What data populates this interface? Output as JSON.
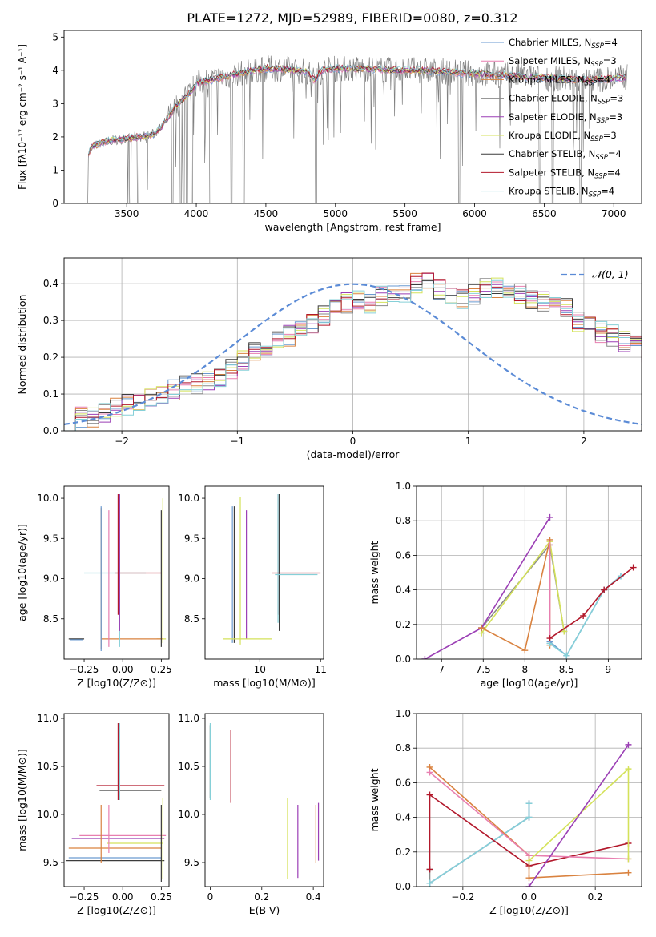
{
  "figure_title": "PLATE=1272, MJD=52989, FIBERID=0080, z=0.312",
  "colors": {
    "chabrier_miles": "#6a9ad0",
    "salpeter_miles": "#e87fb0",
    "kroupa_miles": "#d9823f",
    "chabrier_elodie": "#8a8a8a",
    "salpeter_elodie": "#9b3fb5",
    "kroupa_elodie": "#d4e25a",
    "chabrier_stelib": "#3c3c3c",
    "salpeter_stelib": "#b2182b",
    "kroupa_stelib": "#86d0d8",
    "normal_curve": "#5b8bd6"
  },
  "chart_data": [
    {
      "id": "spectrum",
      "type": "line",
      "xlabel": "wavelength [Angstrom, rest frame]",
      "ylabel": "Flux [fλ10⁻¹⁷ erg cm⁻² s⁻¹ A⁻¹]",
      "xlim": [
        3050,
        7200
      ],
      "ylim": [
        0,
        5.2
      ],
      "xticks": [
        3500,
        4000,
        4500,
        5000,
        5500,
        6000,
        6500,
        7000
      ],
      "yticks": [
        0,
        1,
        2,
        3,
        4,
        5
      ],
      "grid": false,
      "legend_position": "top-right",
      "legend": [
        {
          "label": "Chabrier MILES, N",
          "sub": "SSP",
          "suffix": "=4",
          "color": "#6a9ad0"
        },
        {
          "label": "Salpeter MILES, N",
          "sub": "SSP",
          "suffix": "=3",
          "color": "#e87fb0"
        },
        {
          "label": "Kroupa MILES, N",
          "sub": "SSP",
          "suffix": "=4",
          "color": "#d9823f"
        },
        {
          "label": "Chabrier ELODIE, N",
          "sub": "SSP",
          "suffix": "=3",
          "color": "#8a8a8a"
        },
        {
          "label": "Salpeter ELODIE, N",
          "sub": "SSP",
          "suffix": "=3",
          "color": "#9b3fb5"
        },
        {
          "label": "Kroupa ELODIE, N",
          "sub": "SSP",
          "suffix": "=3",
          "color": "#d4e25a"
        },
        {
          "label": "Chabrier STELIB, N",
          "sub": "SSP",
          "suffix": "=4",
          "color": "#3c3c3c"
        },
        {
          "label": "Salpeter STELIB, N",
          "sub": "SSP",
          "suffix": "=4",
          "color": "#b2182b"
        },
        {
          "label": "Kroupa STELIB, N",
          "sub": "SSP",
          "suffix": "=4",
          "color": "#86d0d8"
        }
      ],
      "model_envelope": {
        "x": [
          3220,
          3250,
          3300,
          3400,
          3500,
          3600,
          3700,
          3750,
          3800,
          3850,
          3900,
          3950,
          4000,
          4100,
          4200,
          4300,
          4400,
          4500,
          4600,
          4700,
          4800,
          4850,
          4900,
          5000,
          5200,
          5400,
          5600,
          5800,
          6000,
          6200,
          6400,
          6600,
          6800,
          7000,
          7100
        ],
        "y": [
          1.5,
          1.7,
          1.8,
          1.9,
          1.95,
          2.0,
          2.1,
          2.3,
          2.6,
          2.9,
          3.1,
          3.3,
          3.6,
          3.7,
          3.8,
          3.9,
          4.0,
          4.05,
          4.05,
          4.0,
          3.95,
          3.7,
          4.0,
          4.05,
          4.05,
          4.0,
          4.0,
          3.95,
          3.9,
          3.85,
          3.8,
          3.75,
          3.7,
          3.75,
          3.8
        ]
      },
      "observed_absorption_dips": [
        3525,
        3580,
        3830,
        3889,
        3910,
        3934,
        3968,
        4101,
        4254,
        4340,
        4861,
        5890,
        6470,
        6560,
        6760
      ]
    },
    {
      "id": "residual_histogram",
      "type": "bar",
      "xlabel": "(data-model)/error",
      "ylabel": "Normed distribution",
      "xlim": [
        -2.5,
        2.5
      ],
      "ylim": [
        0,
        0.47
      ],
      "xticks": [
        -2,
        -1,
        0,
        1,
        2
      ],
      "yticks": [
        0.0,
        0.1,
        0.2,
        0.3,
        0.4
      ],
      "grid": true,
      "legend_position": "top-right",
      "legend": [
        {
          "label": "𝒩(0, 1)",
          "color": "#5b8bd6"
        }
      ],
      "bin_width": 0.1,
      "bins_start": -2.5,
      "series_base": [
        0.03,
        0.035,
        0.04,
        0.05,
        0.06,
        0.07,
        0.08,
        0.095,
        0.1,
        0.11,
        0.12,
        0.13,
        0.14,
        0.15,
        0.17,
        0.19,
        0.21,
        0.22,
        0.24,
        0.26,
        0.27,
        0.29,
        0.31,
        0.33,
        0.35,
        0.36,
        0.35,
        0.37,
        0.37,
        0.38,
        0.4,
        0.4,
        0.38,
        0.37,
        0.36,
        0.37,
        0.39,
        0.39,
        0.38,
        0.37,
        0.36,
        0.35,
        0.34,
        0.33,
        0.3,
        0.29,
        0.27,
        0.26,
        0.24,
        0.23,
        0.21,
        0.2,
        0.18,
        0.17,
        0.15,
        0.14,
        0.12,
        0.11,
        0.1,
        0.09,
        0.08,
        0.07,
        0.06,
        0.05,
        0.045,
        0.04,
        0.035,
        0.03,
        0.03,
        0.03
      ]
    },
    {
      "id": "age_vs_Z",
      "type": "scatter",
      "xlabel": "Z [log10(Z/Z⊙)]",
      "ylabel": "age  [log10(age/yr)]",
      "xlim": [
        -0.38,
        0.3
      ],
      "ylim": [
        8.0,
        10.15
      ],
      "xticks": [
        -0.25,
        0.0,
        0.25
      ],
      "xticklabels": [
        "−0.25",
        "0.00",
        "0.25"
      ],
      "yticks": [
        8.5,
        9.0,
        9.5,
        10.0
      ],
      "grid": false,
      "points": [
        {
          "x": -0.3,
          "y": 8.25,
          "xerr": 0.05,
          "yerr": 0.0,
          "color": "#3c3c3c"
        },
        {
          "x": -0.3,
          "y": 8.24,
          "xerr": 0.04,
          "yerr": 0.0,
          "color": "#6a9ad0"
        },
        {
          "x": 0.25,
          "y": 8.25,
          "xerr": 0.03,
          "yerr": 0.0,
          "color": "#d4e25a"
        },
        {
          "x": 0.06,
          "y": 8.25,
          "xerr": 0.2,
          "yerr": 0.0,
          "color": "#d9823f"
        },
        {
          "x": -0.05,
          "y": 9.07,
          "xerr": 0.2,
          "yerr": 0.0,
          "color": "#86d0d8"
        },
        {
          "x": 0.1,
          "y": 9.07,
          "xerr": 0.15,
          "yerr": 0.0,
          "color": "#b2182b"
        },
        {
          "x": -0.14,
          "y": 9.0,
          "xerr": 0.0,
          "yerr": 0.88,
          "color": "#d9823f"
        },
        {
          "x": -0.14,
          "y": 9.0,
          "xerr": 0.0,
          "yerr": 0.9,
          "color": "#6a9ad0"
        },
        {
          "x": -0.09,
          "y": 9.0,
          "xerr": 0.0,
          "yerr": 0.85,
          "color": "#e87fb0"
        },
        {
          "x": -0.03,
          "y": 9.3,
          "xerr": 0.0,
          "yerr": 0.75,
          "color": "#b2182b"
        },
        {
          "x": -0.02,
          "y": 9.1,
          "xerr": 0.0,
          "yerr": 0.95,
          "color": "#86d0d8"
        },
        {
          "x": -0.02,
          "y": 9.2,
          "xerr": 0.0,
          "yerr": 0.85,
          "color": "#9b3fb5"
        },
        {
          "x": 0.25,
          "y": 9.0,
          "xerr": 0.0,
          "yerr": 0.85,
          "color": "#3c3c3c"
        },
        {
          "x": 0.26,
          "y": 9.1,
          "xerr": 0.0,
          "yerr": 0.9,
          "color": "#d4e25a"
        }
      ]
    },
    {
      "id": "age_vs_mass",
      "type": "scatter",
      "xlabel": "mass [log10(M/M⊙)]",
      "ylabel": "",
      "xlim": [
        9.1,
        11.05
      ],
      "ylim": [
        8.0,
        10.15
      ],
      "xticks": [
        9,
        10,
        11
      ],
      "yticks": [
        8.5,
        9.0,
        9.5,
        10.0
      ],
      "grid": false,
      "points": [
        {
          "x": 9.5,
          "y": 8.25,
          "xerr": 0.0,
          "yerr": 0.0,
          "color": "#3c3c3c"
        },
        {
          "x": 9.55,
          "y": 9.05,
          "xerr": 0.0,
          "yerr": 0.85,
          "color": "#6a9ad0"
        },
        {
          "x": 9.58,
          "y": 9.05,
          "xerr": 0.0,
          "yerr": 0.85,
          "color": "#3c3c3c"
        },
        {
          "x": 9.68,
          "y": 9.1,
          "xerr": 0.0,
          "yerr": 0.92,
          "color": "#d4e25a"
        },
        {
          "x": 9.78,
          "y": 9.05,
          "xerr": 0.0,
          "yerr": 0.8,
          "color": "#9b3fb5"
        },
        {
          "x": 9.8,
          "y": 8.25,
          "xerr": 0.4,
          "yerr": 0.0,
          "color": "#d4e25a"
        },
        {
          "x": 10.3,
          "y": 9.3,
          "xerr": 0.0,
          "yerr": 0.75,
          "color": "#b2182b"
        },
        {
          "x": 10.3,
          "y": 9.25,
          "xerr": 0.0,
          "yerr": 0.8,
          "color": "#86d0d8"
        },
        {
          "x": 10.32,
          "y": 9.2,
          "xerr": 0.0,
          "yerr": 0.85,
          "color": "#3c3c3c"
        },
        {
          "x": 10.6,
          "y": 9.07,
          "xerr": 0.4,
          "yerr": 0.0,
          "color": "#b2182b"
        },
        {
          "x": 10.6,
          "y": 9.05,
          "xerr": 0.35,
          "yerr": 0.0,
          "color": "#86d0d8"
        }
      ]
    },
    {
      "id": "massweight_vs_age",
      "type": "line",
      "xlabel": "age  [log10(age/yr)]",
      "ylabel": "mass weight",
      "xlim": [
        6.7,
        9.4
      ],
      "ylim": [
        0.0,
        1.0
      ],
      "xticks": [
        7.0,
        7.5,
        8.0,
        8.5,
        9.0
      ],
      "yticks": [
        0.0,
        0.2,
        0.4,
        0.6,
        0.8,
        1.0
      ],
      "grid": true,
      "series": [
        {
          "name": "Chabrier ELODIE",
          "color": "#8a8a8a",
          "x": [
            7.48,
            8.3,
            8.47
          ],
          "y": [
            0.18,
            0.66,
            0.16
          ]
        },
        {
          "name": "Kroupa ELODIE",
          "color": "#d4e25a",
          "x": [
            7.48,
            8.3,
            8.47
          ],
          "y": [
            0.15,
            0.68,
            0.16
          ]
        },
        {
          "name": "Salpeter ELODIE",
          "color": "#9b3fb5",
          "x": [
            6.8,
            7.48,
            8.3
          ],
          "y": [
            0.0,
            0.18,
            0.82
          ]
        },
        {
          "name": "Kroupa MILES",
          "color": "#d9823f",
          "x": [
            7.48,
            8.0,
            8.3,
            8.3
          ],
          "y": [
            0.18,
            0.05,
            0.69,
            0.08
          ]
        },
        {
          "name": "Salpeter MILES",
          "color": "#e87fb0",
          "x": [
            8.3,
            8.3
          ],
          "y": [
            0.66,
            0.1
          ]
        },
        {
          "name": "Chabrier MILES",
          "color": "#6a9ad0",
          "x": [
            8.3,
            8.5,
            8.95,
            9.15
          ],
          "y": [
            0.1,
            0.02,
            0.4,
            0.48
          ]
        },
        {
          "name": "Kroupa STELIB",
          "color": "#86d0d8",
          "x": [
            8.3,
            8.5,
            8.95,
            9.15
          ],
          "y": [
            0.09,
            0.02,
            0.4,
            0.48
          ]
        },
        {
          "name": "Salpeter STELIB",
          "color": "#b2182b",
          "x": [
            8.3,
            8.7,
            8.95,
            9.3
          ],
          "y": [
            0.12,
            0.25,
            0.4,
            0.53
          ]
        }
      ]
    },
    {
      "id": "mass_vs_Z",
      "type": "scatter",
      "xlabel": "Z [log10(Z/Z⊙)]",
      "ylabel": "mass [log10(M/M⊙)]",
      "xlim": [
        -0.38,
        0.3
      ],
      "ylim": [
        9.25,
        11.05
      ],
      "xticks": [
        -0.25,
        0.0,
        0.25
      ],
      "xticklabels": [
        "−0.25",
        "0.00",
        "0.25"
      ],
      "yticks": [
        9.5,
        10.0,
        10.5,
        11.0
      ],
      "grid": false,
      "points": [
        {
          "x": -0.05,
          "y": 9.55,
          "xerr": 0.3,
          "yerr": 0.0,
          "color": "#6a9ad0"
        },
        {
          "x": -0.05,
          "y": 9.52,
          "xerr": 0.32,
          "yerr": 0.0,
          "color": "#3c3c3c"
        },
        {
          "x": -0.05,
          "y": 9.65,
          "xerr": 0.3,
          "yerr": 0.0,
          "color": "#d9823f"
        },
        {
          "x": 0.08,
          "y": 9.7,
          "xerr": 0.18,
          "yerr": 0.0,
          "color": "#d4e25a"
        },
        {
          "x": -0.03,
          "y": 9.75,
          "xerr": 0.3,
          "yerr": 0.0,
          "color": "#9b3fb5"
        },
        {
          "x": 0.0,
          "y": 9.78,
          "xerr": 0.28,
          "yerr": 0.0,
          "color": "#e87fb0"
        },
        {
          "x": 0.05,
          "y": 10.25,
          "xerr": 0.2,
          "yerr": 0.0,
          "color": "#3c3c3c"
        },
        {
          "x": 0.05,
          "y": 10.3,
          "xerr": 0.22,
          "yerr": 0.0,
          "color": "#b2182b"
        },
        {
          "x": -0.14,
          "y": 9.8,
          "xerr": 0.0,
          "yerr": 0.3,
          "color": "#d9823f"
        },
        {
          "x": -0.09,
          "y": 9.85,
          "xerr": 0.0,
          "yerr": 0.25,
          "color": "#e87fb0"
        },
        {
          "x": -0.03,
          "y": 10.55,
          "xerr": 0.0,
          "yerr": 0.4,
          "color": "#b2182b"
        },
        {
          "x": -0.02,
          "y": 10.55,
          "xerr": 0.0,
          "yerr": 0.4,
          "color": "#86d0d8"
        },
        {
          "x": 0.25,
          "y": 9.7,
          "xerr": 0.0,
          "yerr": 0.4,
          "color": "#3c3c3c"
        },
        {
          "x": 0.26,
          "y": 9.75,
          "xerr": 0.0,
          "yerr": 0.42,
          "color": "#d4e25a"
        }
      ]
    },
    {
      "id": "mass_vs_ebv",
      "type": "scatter",
      "xlabel": "E(B-V)",
      "ylabel": "",
      "xlim": [
        -0.02,
        0.44
      ],
      "ylim": [
        9.25,
        11.05
      ],
      "xticks": [
        0.0,
        0.2,
        0.4
      ],
      "yticks": [
        9.5,
        10.0,
        10.5,
        11.0
      ],
      "grid": false,
      "points": [
        {
          "x": 0.0,
          "y": 10.55,
          "xerr": 0.0,
          "yerr": 0.38,
          "color": "#3c3c3c"
        },
        {
          "x": 0.0,
          "y": 10.55,
          "xerr": 0.0,
          "yerr": 0.4,
          "color": "#86d0d8"
        },
        {
          "x": 0.08,
          "y": 10.5,
          "xerr": 0.0,
          "yerr": 0.38,
          "color": "#b2182b"
        },
        {
          "x": 0.3,
          "y": 9.75,
          "xerr": 0.0,
          "yerr": 0.42,
          "color": "#d4e25a"
        },
        {
          "x": 0.34,
          "y": 9.72,
          "xerr": 0.0,
          "yerr": 0.38,
          "color": "#9b3fb5"
        },
        {
          "x": 0.41,
          "y": 9.8,
          "xerr": 0.0,
          "yerr": 0.3,
          "color": "#d9823f"
        },
        {
          "x": 0.42,
          "y": 9.82,
          "xerr": 0.0,
          "yerr": 0.3,
          "color": "#9b3fb5"
        }
      ]
    },
    {
      "id": "massweight_vs_Z",
      "type": "line",
      "xlabel": "Z [log10(Z/Z⊙)]",
      "ylabel": "mass weight",
      "xlim": [
        -0.34,
        0.34
      ],
      "ylim": [
        0.0,
        1.0
      ],
      "xticks": [
        -0.2,
        0.0,
        0.2
      ],
      "xticklabels": [
        "−0.2",
        "0.0",
        "0.2"
      ],
      "yticks": [
        0.0,
        0.2,
        0.4,
        0.6,
        0.8,
        1.0
      ],
      "grid": true,
      "series": [
        {
          "name": "Chabrier ELODIE",
          "color": "#8a8a8a",
          "x": [
            -0.3,
            -0.3,
            0.0,
            0.0
          ],
          "y": [
            0.1,
            0.02,
            0.4,
            0.48
          ]
        },
        {
          "name": "Chabrier MILES",
          "color": "#6a9ad0",
          "x": [
            -0.3,
            0.0,
            0.0
          ],
          "y": [
            0.02,
            0.4,
            0.48
          ]
        },
        {
          "name": "Kroupa STELIB",
          "color": "#86d0d8",
          "x": [
            -0.3,
            0.0,
            0.0
          ],
          "y": [
            0.02,
            0.4,
            0.48
          ]
        },
        {
          "name": "Salpeter STELIB",
          "color": "#b2182b",
          "x": [
            -0.3,
            -0.3,
            0.0,
            0.3
          ],
          "y": [
            0.1,
            0.53,
            0.12,
            0.25
          ]
        },
        {
          "name": "Kroupa MILES",
          "color": "#d9823f",
          "x": [
            -0.3,
            0.0,
            0.0,
            0.3
          ],
          "y": [
            0.69,
            0.18,
            0.05,
            0.08
          ]
        },
        {
          "name": "Salpeter MILES",
          "color": "#e87fb0",
          "x": [
            -0.3,
            0.0,
            0.3
          ],
          "y": [
            0.66,
            0.18,
            0.16
          ]
        },
        {
          "name": "Kroupa ELODIE",
          "color": "#d4e25a",
          "x": [
            0.0,
            0.3,
            0.3
          ],
          "y": [
            0.15,
            0.68,
            0.16
          ]
        },
        {
          "name": "Salpeter ELODIE",
          "color": "#9b3fb5",
          "x": [
            0.0,
            0.3
          ],
          "y": [
            0.0,
            0.82
          ]
        }
      ]
    }
  ]
}
